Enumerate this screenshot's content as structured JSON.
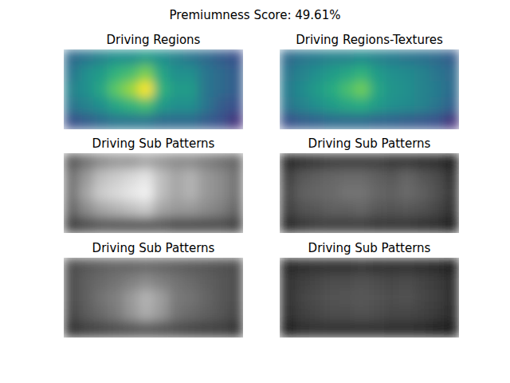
{
  "title": "Premiumness Score: 49.61%",
  "chart_data": [
    {
      "type": "heatmap",
      "title": "Driving Regions",
      "color": "viridis",
      "cells": [
        [
          0.35,
          0.4,
          0.45,
          0.5,
          0.5,
          0.55,
          0.5,
          0.45,
          0.4,
          0.35,
          0.3,
          0.25
        ],
        [
          0.4,
          0.5,
          0.55,
          0.65,
          0.7,
          0.8,
          0.6,
          0.5,
          0.5,
          0.4,
          0.35,
          0.3
        ],
        [
          0.45,
          0.5,
          0.6,
          0.75,
          0.85,
          1.0,
          0.65,
          0.55,
          0.55,
          0.4,
          0.35,
          0.3
        ],
        [
          0.4,
          0.45,
          0.5,
          0.6,
          0.65,
          0.7,
          0.55,
          0.5,
          0.5,
          0.4,
          0.3,
          0.25
        ],
        [
          0.25,
          0.3,
          0.35,
          0.4,
          0.4,
          0.4,
          0.35,
          0.35,
          0.35,
          0.3,
          0.25,
          0.15
        ]
      ]
    },
    {
      "type": "heatmap",
      "title": "Driving Regions-Textures",
      "color": "viridis",
      "cells": [
        [
          0.35,
          0.4,
          0.42,
          0.45,
          0.45,
          0.48,
          0.45,
          0.42,
          0.4,
          0.38,
          0.35,
          0.3
        ],
        [
          0.4,
          0.45,
          0.5,
          0.55,
          0.6,
          0.65,
          0.55,
          0.5,
          0.48,
          0.45,
          0.4,
          0.35
        ],
        [
          0.42,
          0.48,
          0.55,
          0.62,
          0.7,
          0.78,
          0.6,
          0.52,
          0.5,
          0.45,
          0.42,
          0.35
        ],
        [
          0.4,
          0.45,
          0.5,
          0.55,
          0.6,
          0.62,
          0.55,
          0.5,
          0.48,
          0.45,
          0.4,
          0.32
        ],
        [
          0.25,
          0.3,
          0.32,
          0.35,
          0.35,
          0.35,
          0.33,
          0.32,
          0.3,
          0.28,
          0.25,
          0.15
        ]
      ]
    },
    {
      "type": "heatmap",
      "title": "Driving Sub Patterns",
      "color": "gray",
      "cells": [
        [
          0.35,
          0.45,
          0.55,
          0.6,
          0.6,
          0.65,
          0.6,
          0.55,
          0.55,
          0.5,
          0.45,
          0.4
        ],
        [
          0.45,
          0.6,
          0.75,
          0.8,
          0.85,
          0.9,
          0.75,
          0.65,
          0.7,
          0.6,
          0.55,
          0.45
        ],
        [
          0.45,
          0.65,
          0.8,
          0.85,
          0.9,
          0.95,
          0.75,
          0.65,
          0.7,
          0.6,
          0.55,
          0.45
        ],
        [
          0.4,
          0.55,
          0.65,
          0.7,
          0.75,
          0.8,
          0.65,
          0.6,
          0.6,
          0.55,
          0.5,
          0.4
        ],
        [
          0.25,
          0.3,
          0.35,
          0.35,
          0.35,
          0.35,
          0.35,
          0.3,
          0.3,
          0.3,
          0.3,
          0.25
        ]
      ]
    },
    {
      "type": "heatmap",
      "title": "Driving Sub Patterns",
      "color": "gray",
      "cells": [
        [
          0.15,
          0.2,
          0.22,
          0.25,
          0.25,
          0.25,
          0.25,
          0.22,
          0.22,
          0.2,
          0.18,
          0.12
        ],
        [
          0.25,
          0.35,
          0.38,
          0.4,
          0.42,
          0.42,
          0.38,
          0.35,
          0.4,
          0.35,
          0.3,
          0.2
        ],
        [
          0.28,
          0.38,
          0.4,
          0.42,
          0.45,
          0.45,
          0.4,
          0.38,
          0.42,
          0.38,
          0.32,
          0.22
        ],
        [
          0.25,
          0.32,
          0.35,
          0.38,
          0.38,
          0.4,
          0.35,
          0.33,
          0.35,
          0.32,
          0.28,
          0.2
        ],
        [
          0.15,
          0.22,
          0.25,
          0.25,
          0.25,
          0.25,
          0.22,
          0.22,
          0.22,
          0.2,
          0.18,
          0.1
        ]
      ]
    },
    {
      "type": "heatmap",
      "title": "Driving Sub Patterns",
      "color": "gray",
      "cells": [
        [
          0.3,
          0.35,
          0.38,
          0.4,
          0.4,
          0.42,
          0.4,
          0.38,
          0.36,
          0.35,
          0.32,
          0.3
        ],
        [
          0.3,
          0.38,
          0.42,
          0.45,
          0.5,
          0.55,
          0.5,
          0.45,
          0.42,
          0.38,
          0.35,
          0.3
        ],
        [
          0.3,
          0.38,
          0.45,
          0.5,
          0.6,
          0.7,
          0.62,
          0.48,
          0.45,
          0.4,
          0.35,
          0.3
        ],
        [
          0.28,
          0.36,
          0.42,
          0.48,
          0.58,
          0.68,
          0.6,
          0.46,
          0.42,
          0.38,
          0.34,
          0.28
        ],
        [
          0.2,
          0.25,
          0.28,
          0.3,
          0.32,
          0.35,
          0.32,
          0.3,
          0.28,
          0.26,
          0.25,
          0.2
        ]
      ]
    },
    {
      "type": "heatmap",
      "title": "Driving Sub Patterns",
      "color": "gray",
      "cells": [
        [
          0.15,
          0.18,
          0.2,
          0.2,
          0.2,
          0.22,
          0.2,
          0.2,
          0.2,
          0.18,
          0.16,
          0.12
        ],
        [
          0.2,
          0.25,
          0.28,
          0.3,
          0.3,
          0.32,
          0.3,
          0.28,
          0.3,
          0.27,
          0.24,
          0.18
        ],
        [
          0.2,
          0.27,
          0.3,
          0.32,
          0.33,
          0.35,
          0.32,
          0.3,
          0.32,
          0.28,
          0.25,
          0.18
        ],
        [
          0.18,
          0.25,
          0.28,
          0.3,
          0.3,
          0.32,
          0.3,
          0.28,
          0.28,
          0.26,
          0.23,
          0.16
        ],
        [
          0.12,
          0.18,
          0.2,
          0.2,
          0.2,
          0.2,
          0.2,
          0.18,
          0.18,
          0.16,
          0.14,
          0.1
        ]
      ]
    }
  ]
}
